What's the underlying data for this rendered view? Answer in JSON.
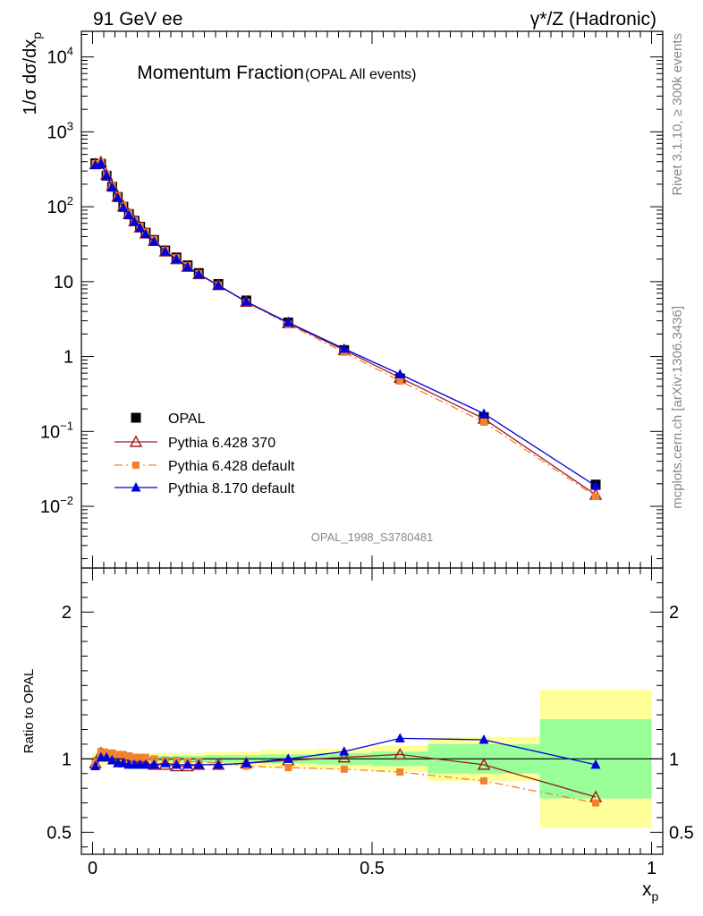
{
  "header": {
    "left": "91 GeV ee",
    "right": "γ*/Z (Hadronic)"
  },
  "side": {
    "rivet": "Rivet 3.1.10, ≥ 300k events",
    "mcplots": "mcplots.cern.ch [arXiv:1306.3436]"
  },
  "colors": {
    "opal": "#000000",
    "p6_370": "#9a1a1a",
    "p6_default": "#f38132",
    "p8_default": "#0000e0",
    "band_inner": "#99ff99",
    "band_outer": "#ffff99"
  },
  "chart_data": [
    {
      "type": "line",
      "title": "Momentum Fraction",
      "subtitle": "(OPAL All events)",
      "watermark": "OPAL_1998_S3780481",
      "ylabel": "1/σ dσ/dx_p",
      "yscale": "log",
      "ylim": [
        0.0015,
        22000
      ],
      "xlim": [
        -0.02,
        1.02
      ],
      "yticks": [
        {
          "value": 10000,
          "base": "10",
          "exp": "4"
        },
        {
          "value": 1000,
          "base": "10",
          "exp": "3"
        },
        {
          "value": 100,
          "base": "10",
          "exp": "2"
        },
        {
          "value": 10,
          "base": "10",
          "exp": ""
        },
        {
          "value": 1,
          "base": "1",
          "exp": ""
        },
        {
          "value": 0.1,
          "base": "10",
          "exp": "−1"
        },
        {
          "value": 0.01,
          "base": "10",
          "exp": "−2"
        }
      ],
      "legend_position": "bottom-left",
      "x": [
        0.005,
        0.015,
        0.025,
        0.035,
        0.045,
        0.055,
        0.065,
        0.075,
        0.085,
        0.095,
        0.11,
        0.13,
        0.15,
        0.17,
        0.19,
        0.225,
        0.275,
        0.35,
        0.45,
        0.55,
        0.7,
        0.9
      ],
      "series": [
        {
          "name": "OPAL",
          "marker": "square",
          "values": [
            380,
            375,
            260,
            185,
            135,
            100,
            80,
            65,
            54,
            45,
            36,
            26,
            21,
            16.5,
            13,
            9.3,
            5.6,
            2.85,
            1.22,
            0.51,
            0.155,
            0.0195
          ]
        },
        {
          "name": "Pythia 6.428 370",
          "marker": "open-triangle",
          "values": [
            370,
            395,
            268,
            190,
            137,
            101,
            80,
            64,
            53,
            44,
            35,
            25.3,
            20,
            15.8,
            12.6,
            9.0,
            5.4,
            2.8,
            1.22,
            0.52,
            0.148,
            0.0143
          ]
        },
        {
          "name": "Pythia 6.428 default",
          "marker": "square-dashdot",
          "values": [
            375,
            395,
            270,
            192,
            139,
            103,
            82,
            66,
            55,
            46,
            36.5,
            26.2,
            20.8,
            16.3,
            12.8,
            9.0,
            5.3,
            2.7,
            1.14,
            0.47,
            0.133,
            0.0136
          ]
        },
        {
          "name": "Pythia 8.170 default",
          "marker": "filled-triangle",
          "values": [
            360,
            380,
            262,
            182,
            131,
            97,
            77,
            63,
            52,
            43,
            34.5,
            25.2,
            20,
            15.8,
            12.5,
            8.9,
            5.4,
            2.85,
            1.27,
            0.58,
            0.173,
            0.0187
          ]
        }
      ]
    },
    {
      "type": "line",
      "ylabel": "Ratio to OPAL",
      "xlabel": "x_p",
      "ylim": [
        0.35,
        2.3
      ],
      "xlim": [
        -0.02,
        1.02
      ],
      "yticks": [
        "0.5",
        "1",
        "2"
      ],
      "xticks": [
        "0",
        "0.5",
        "1"
      ],
      "bins": [
        [
          0,
          0.01
        ],
        [
          0.01,
          0.02
        ],
        [
          0.02,
          0.03
        ],
        [
          0.03,
          0.04
        ],
        [
          0.04,
          0.05
        ],
        [
          0.05,
          0.06
        ],
        [
          0.06,
          0.07
        ],
        [
          0.07,
          0.08
        ],
        [
          0.08,
          0.09
        ],
        [
          0.09,
          0.1
        ],
        [
          0.1,
          0.12
        ],
        [
          0.12,
          0.14
        ],
        [
          0.14,
          0.16
        ],
        [
          0.16,
          0.18
        ],
        [
          0.18,
          0.2
        ],
        [
          0.2,
          0.25
        ],
        [
          0.25,
          0.3
        ],
        [
          0.3,
          0.4
        ],
        [
          0.4,
          0.5
        ],
        [
          0.5,
          0.6
        ],
        [
          0.6,
          0.8
        ],
        [
          0.8,
          1.0
        ]
      ],
      "stat_band": [
        0.02,
        0.02,
        0.02,
        0.02,
        0.02,
        0.02,
        0.02,
        0.02,
        0.02,
        0.02,
        0.02,
        0.02,
        0.02,
        0.02,
        0.02,
        0.025,
        0.025,
        0.03,
        0.04,
        0.05,
        0.1,
        0.27
      ],
      "total_band": [
        0.04,
        0.04,
        0.04,
        0.04,
        0.04,
        0.04,
        0.04,
        0.04,
        0.04,
        0.04,
        0.04,
        0.04,
        0.04,
        0.04,
        0.04,
        0.045,
        0.05,
        0.06,
        0.07,
        0.09,
        0.15,
        0.47
      ],
      "series": [
        {
          "name": "Pythia 6.428 370",
          "values": [
            0.97,
            1.04,
            1.03,
            1.02,
            1.01,
            1.0,
            0.99,
            0.98,
            0.97,
            0.97,
            0.96,
            0.96,
            0.95,
            0.95,
            0.96,
            0.96,
            0.97,
            0.99,
            1.01,
            1.03,
            0.96,
            0.74
          ]
        },
        {
          "name": "Pythia 6.428 default",
          "values": [
            0.98,
            1.05,
            1.04,
            1.04,
            1.03,
            1.03,
            1.02,
            1.01,
            1.01,
            1.01,
            1.0,
            0.99,
            0.99,
            0.98,
            0.98,
            0.97,
            0.95,
            0.94,
            0.93,
            0.91,
            0.85,
            0.7
          ]
        },
        {
          "name": "Pythia 8.170 default",
          "values": [
            0.95,
            1.01,
            1.01,
            0.99,
            0.97,
            0.97,
            0.96,
            0.96,
            0.96,
            0.96,
            0.96,
            0.97,
            0.96,
            0.96,
            0.96,
            0.96,
            0.97,
            1.0,
            1.05,
            1.14,
            1.13,
            0.96
          ]
        }
      ]
    }
  ]
}
